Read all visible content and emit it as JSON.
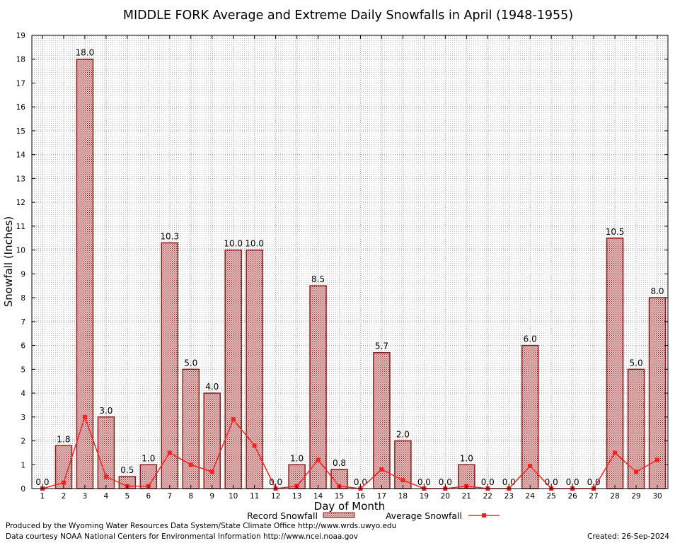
{
  "chart_data": {
    "type": "bar",
    "title": "MIDDLE FORK Average and Extreme Daily Snowfalls in April (1948-1955)",
    "xlabel": "Day of Month",
    "ylabel": "Snowfall (Inches)",
    "ylim": [
      0,
      19
    ],
    "yticks": [
      0,
      1,
      2,
      3,
      4,
      5,
      6,
      7,
      8,
      9,
      10,
      11,
      12,
      13,
      14,
      15,
      16,
      17,
      18,
      19
    ],
    "categories": [
      "1",
      "2",
      "3",
      "4",
      "5",
      "6",
      "7",
      "8",
      "9",
      "10",
      "11",
      "12",
      "13",
      "14",
      "15",
      "16",
      "17",
      "18",
      "19",
      "20",
      "21",
      "22",
      "23",
      "24",
      "25",
      "26",
      "27",
      "28",
      "29",
      "30"
    ],
    "grid": true,
    "legend_position": "bottom",
    "series": [
      {
        "name": "Record Snowfall",
        "type": "bar",
        "color": "#8b1a1a",
        "values": [
          0.0,
          1.8,
          18.0,
          3.0,
          0.5,
          1.0,
          10.3,
          5.0,
          4.0,
          10.0,
          10.0,
          0.0,
          1.0,
          8.5,
          0.8,
          0.0,
          5.7,
          2.0,
          0.0,
          0.0,
          1.0,
          0.0,
          0.0,
          6.0,
          0.0,
          0.0,
          0.0,
          10.5,
          5.0,
          8.0
        ],
        "labels": [
          "0.0",
          "1.8",
          "18.0",
          "3.0",
          "0.5",
          "1.0",
          "10.3",
          "5.0",
          "4.0",
          "10.0",
          "10.0",
          "0.0",
          "1.0",
          "8.5",
          "0.8",
          "0.0",
          "5.7",
          "2.0",
          "0.0",
          "0.0",
          "1.0",
          "0.0",
          "0.0",
          "6.0",
          "0.0",
          "0.0",
          "0.0",
          "10.5",
          "5.0",
          "8.0"
        ]
      },
      {
        "name": "Average Snowfall",
        "type": "line",
        "color": "#ff2020",
        "values": [
          0.0,
          0.25,
          3.0,
          0.5,
          0.1,
          0.1,
          1.5,
          1.0,
          0.7,
          2.9,
          1.8,
          0.0,
          0.1,
          1.2,
          0.1,
          0.0,
          0.8,
          0.35,
          0.0,
          0.0,
          0.1,
          0.0,
          0.0,
          0.95,
          0.0,
          0.0,
          0.0,
          1.5,
          0.7,
          1.2
        ]
      }
    ]
  },
  "footer": {
    "produced_by": "Produced by the Wyoming Water Resources Data System/State Climate Office http://www.wrds.uwyo.edu",
    "courtesy": "Data courtesy NOAA National Centers for Environmental Information http://www.ncei.noaa.gov",
    "created": "Created:  26-Sep-2024"
  }
}
